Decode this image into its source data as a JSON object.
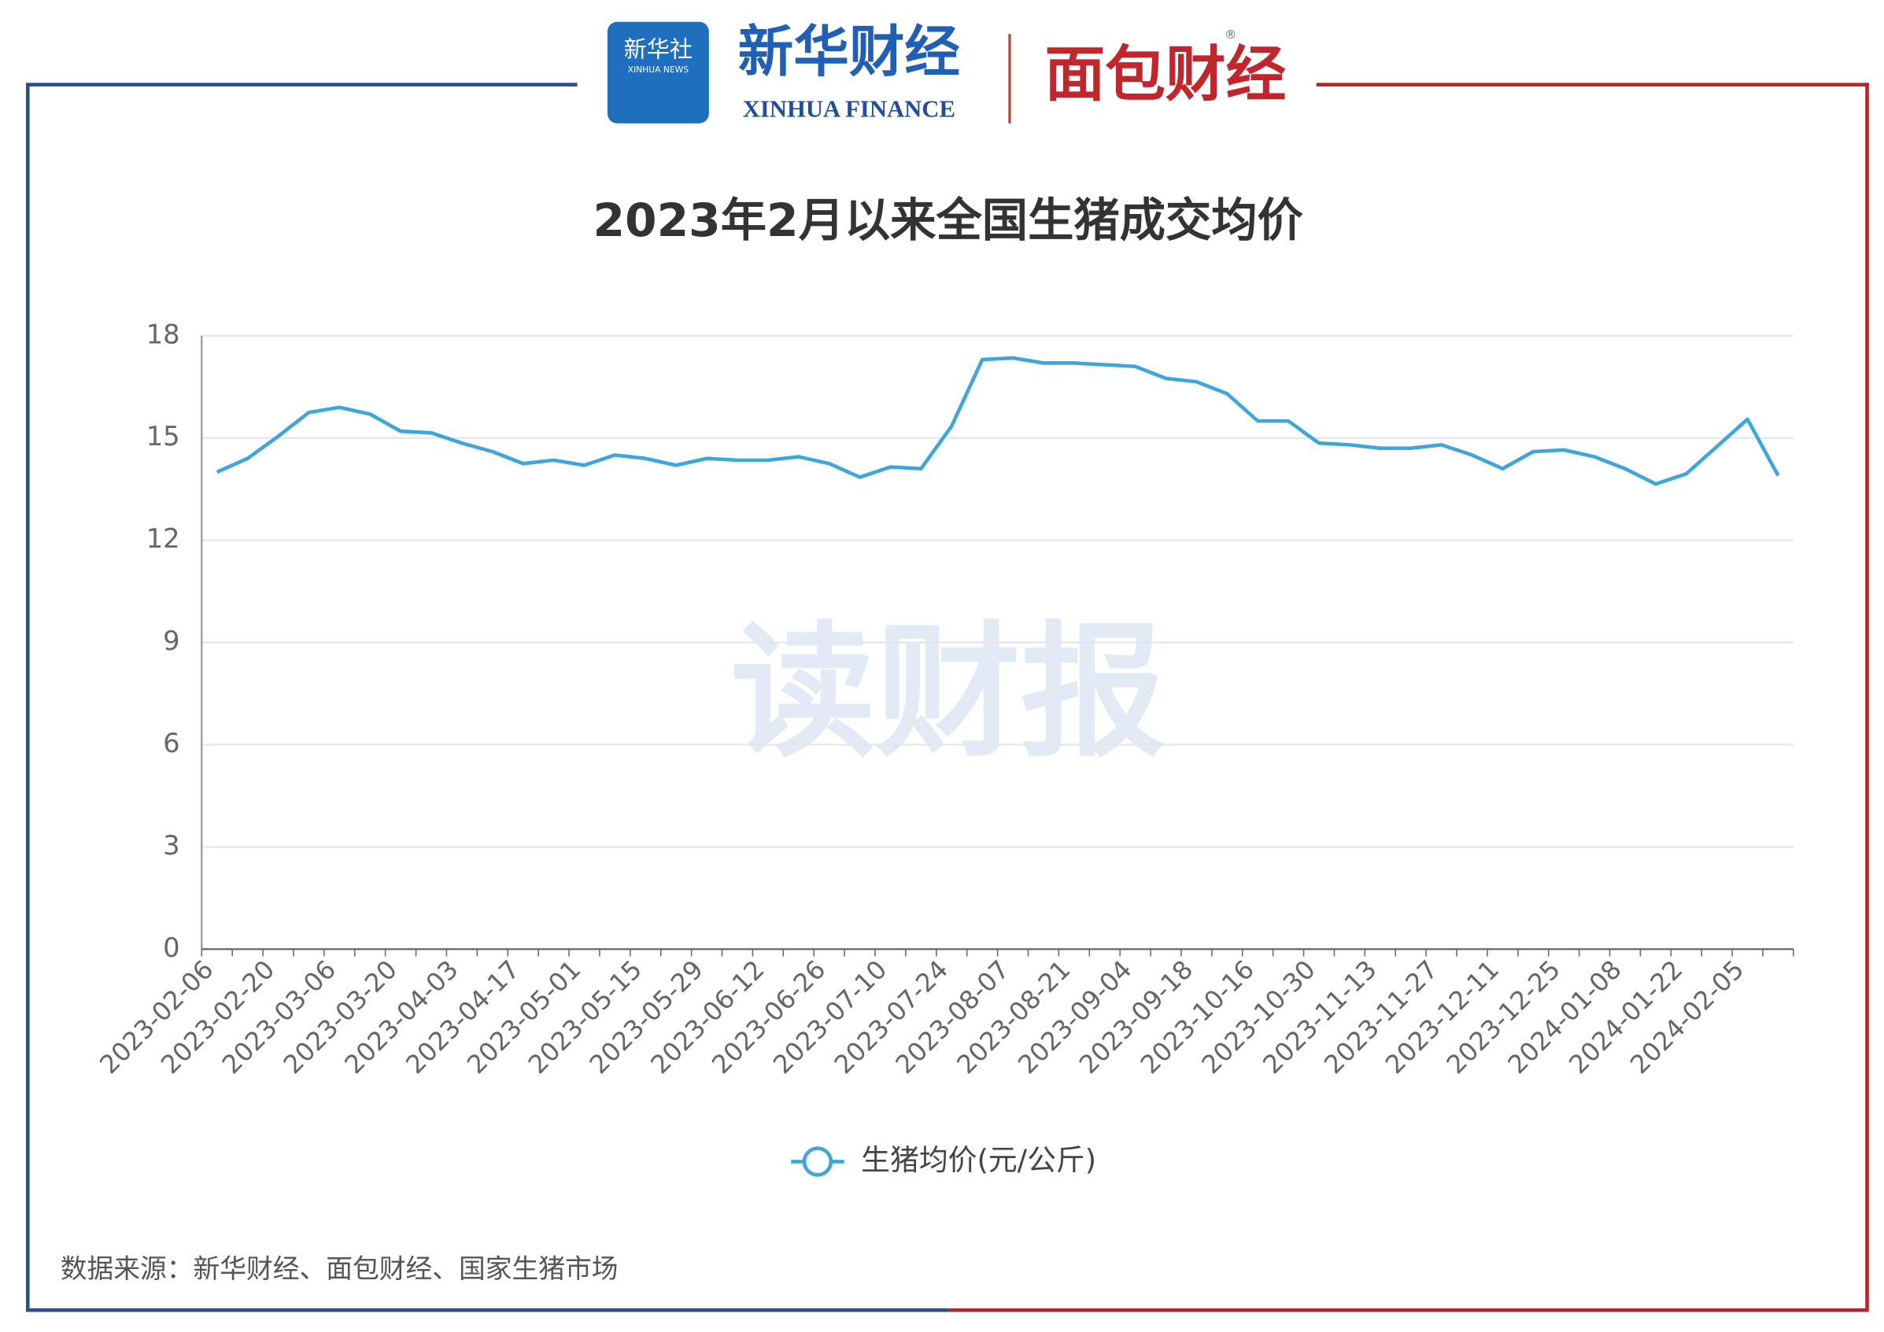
{
  "header": {
    "logo_xinhua": "新华社",
    "logo_xinhua_en": "XINHUA NEWS",
    "logo_finance": "新华财经",
    "logo_finance_en": "XINHUA FINANCE",
    "logo_bread": "面包财经",
    "registered": "®"
  },
  "watermark": "读财报",
  "source": "数据来源：新华财经、面包财经、国家生猪市场",
  "chart_data": {
    "type": "line",
    "title": "2023年2月以来全国生猪成交均价",
    "categories": [
      "2023-02-06",
      null,
      "2023-02-20",
      null,
      "2023-03-06",
      null,
      "2023-03-20",
      null,
      "2023-04-03",
      null,
      "2023-04-17",
      null,
      "2023-05-01",
      null,
      "2023-05-15",
      null,
      "2023-05-29",
      null,
      "2023-06-12",
      null,
      "2023-06-26",
      null,
      "2023-07-10",
      null,
      "2023-07-24",
      null,
      "2023-08-07",
      null,
      "2023-08-21",
      null,
      "2023-09-04",
      null,
      "2023-09-18",
      null,
      "2023-10-16",
      null,
      "2023-10-30",
      null,
      "2023-11-13",
      null,
      "2023-11-27",
      null,
      "2023-12-11",
      null,
      "2023-12-25",
      null,
      "2024-01-08",
      null,
      "2024-01-22",
      null,
      "2024-02-05",
      null
    ],
    "series": [
      {
        "name": "生猪均价(元/公斤)",
        "color": "#3fa6dc",
        "values": [
          14.0,
          14.4,
          15.05,
          15.75,
          15.9,
          15.7,
          15.2,
          15.15,
          14.85,
          14.6,
          14.25,
          14.35,
          14.2,
          14.5,
          14.4,
          14.2,
          14.4,
          14.35,
          14.35,
          14.45,
          14.25,
          13.85,
          14.15,
          14.1,
          15.35,
          17.3,
          17.35,
          17.2,
          17.2,
          17.15,
          17.1,
          16.75,
          16.65,
          16.3,
          15.5,
          15.5,
          14.85,
          14.8,
          14.7,
          14.7,
          14.8,
          14.5,
          14.1,
          14.6,
          14.65,
          14.45,
          14.1,
          13.65,
          13.95,
          14.75,
          15.55,
          13.9
        ]
      }
    ],
    "ylim": [
      0,
      18
    ],
    "yticks": [
      0,
      3,
      6,
      9,
      12,
      15,
      18
    ],
    "grid": true,
    "legend": "bottom"
  }
}
